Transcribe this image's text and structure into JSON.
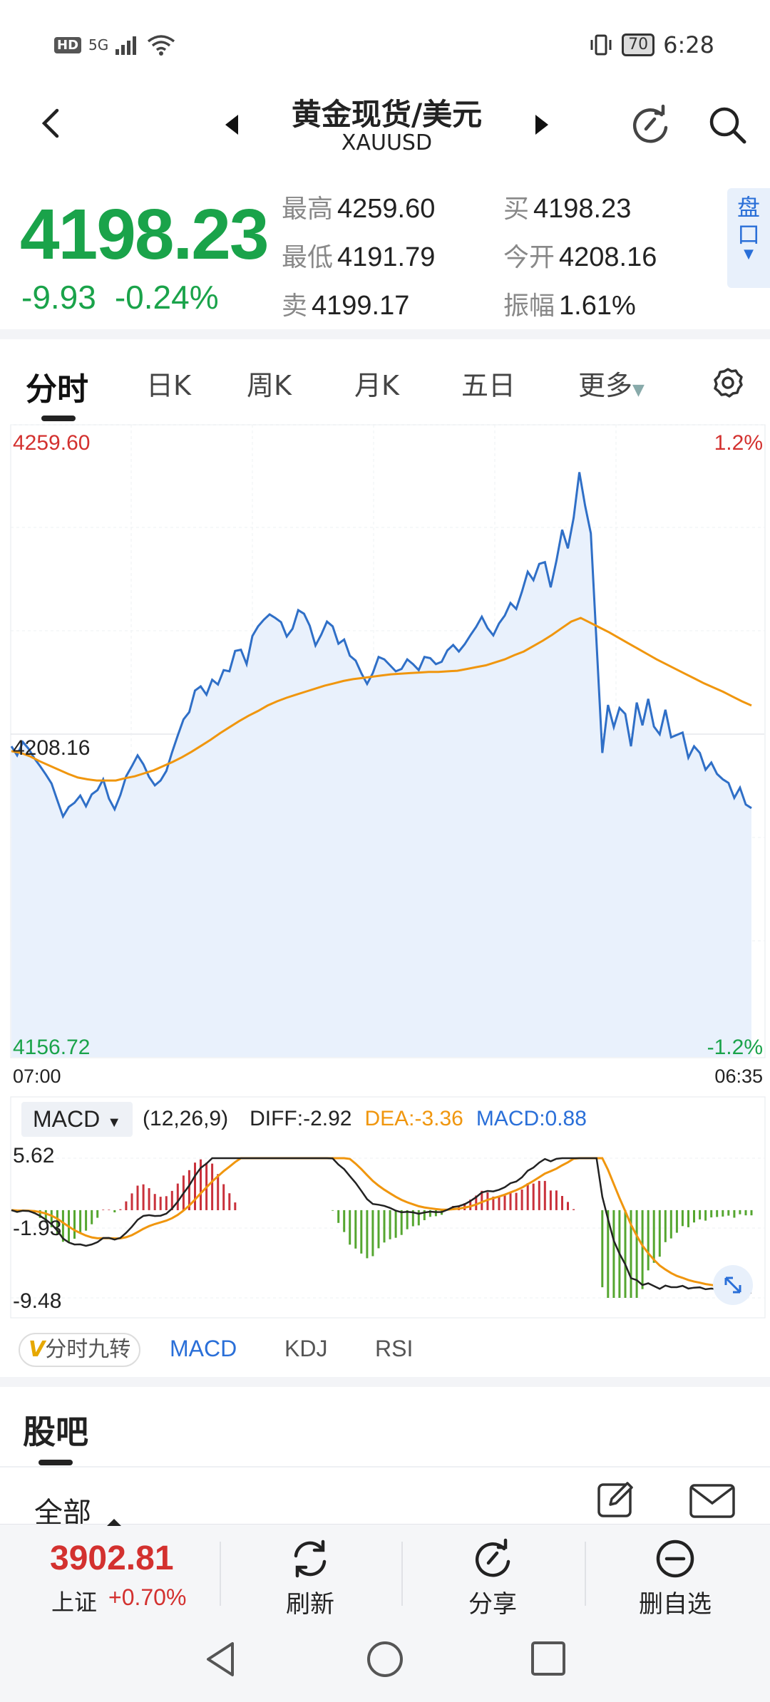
{
  "status_bar": {
    "hd": "HD",
    "network": "5G",
    "battery": "70",
    "time": "6:28"
  },
  "header": {
    "title": "黄金现货/美元",
    "symbol": "XAUUSD"
  },
  "quote": {
    "price": "4198.23",
    "change": "-9.93",
    "change_pct": "-0.24%",
    "high_label": "最高",
    "high": "4259.60",
    "low_label": "最低",
    "low": "4191.79",
    "sell_label": "卖",
    "sell": "4199.17",
    "buy_label": "买",
    "buy": "4198.23",
    "open_label": "今开",
    "open": "4208.16",
    "amp_label": "振幅",
    "amp": "1.61%",
    "pankou": "盘口",
    "color_down": "#1aa34a",
    "color_up": "#d3312f"
  },
  "tabs": {
    "items": [
      "分时",
      "日K",
      "周K",
      "月K",
      "五日",
      "更多"
    ],
    "active": "分时"
  },
  "chart_data": [
    {
      "type": "line",
      "x_start": "07:00",
      "x_end": "06:35",
      "y_max_label": "4259.60",
      "y_mid_label": "4208.16",
      "y_min_label": "4156.72",
      "pct_max_label": "1.2%",
      "pct_min_label": "-1.2%",
      "ylim": [
        4156.72,
        4259.6
      ],
      "series": [
        {
          "name": "price",
          "color": "#2f6fc7",
          "values": [
            4208.5,
            4207.0,
            4209.2,
            4208.1,
            4206.5,
            4205.2,
            4203.8,
            4202.3,
            4199.5,
            4196.8,
            4198.4,
            4199.1,
            4200.3,
            4198.5,
            4200.5,
            4201.2,
            4203.0,
            4199.8,
            4198.0,
            4200.4,
            4203.5,
            4205.2,
            4207.0,
            4205.5,
            4203.4,
            4202.0,
            4202.8,
            4204.4,
            4207.5,
            4210.3,
            4213.0,
            4214.2,
            4217.8,
            4218.5,
            4217.1,
            4219.6,
            4218.8,
            4221.2,
            4221.0,
            4224.4,
            4224.6,
            4222.2,
            4226.9,
            4228.5,
            4229.6,
            4230.5,
            4229.9,
            4229.2,
            4226.8,
            4228.1,
            4231.2,
            4230.6,
            4228.6,
            4225.3,
            4227.1,
            4229.3,
            4228.5,
            4225.6,
            4226.3,
            4223.6,
            4222.8,
            4220.7,
            4218.9,
            4220.7,
            4223.4,
            4223.0,
            4222.0,
            4221.0,
            4221.4,
            4223.0,
            4222.2,
            4221.2,
            4223.4,
            4223.2,
            4222.2,
            4222.6,
            4224.5,
            4225.4,
            4224.3,
            4225.5,
            4227.0,
            4228.4,
            4230.1,
            4228.2,
            4227.0,
            4229.0,
            4230.3,
            4232.4,
            4231.4,
            4234.3,
            4237.6,
            4236.2,
            4238.9,
            4239.2,
            4235.0,
            4239.4,
            4244.6,
            4241.5,
            4246.6,
            4254.2,
            4248.6,
            4244.0,
            4225.8,
            4207.4,
            4215.4,
            4211.7,
            4214.9,
            4213.9,
            4208.5,
            4215.8,
            4212.0,
            4216.4,
            4211.8,
            4210.5,
            4214.6,
            4210.0,
            4210.4,
            4210.8,
            4206.6,
            4208.5,
            4207.4,
            4204.6,
            4205.8,
            4203.9,
            4203.0,
            4202.4,
            4199.9,
            4201.6,
            4198.8,
            4198.2
          ]
        },
        {
          "name": "avg",
          "color": "#f0960e",
          "values": [
            4207.7,
            4207.4,
            4206.8,
            4206.0,
            4205.3,
            4204.6,
            4203.9,
            4203.3,
            4203.0,
            4202.8,
            4202.8,
            4202.8,
            4203.2,
            4203.5,
            4204.0,
            4204.5,
            4205.2,
            4205.9,
            4206.7,
            4207.6,
            4208.6,
            4209.6,
            4210.7,
            4211.7,
            4212.7,
            4213.6,
            4214.4,
            4215.3,
            4216.0,
            4216.6,
            4217.1,
            4217.6,
            4218.1,
            4218.6,
            4219.0,
            4219.4,
            4219.7,
            4219.9,
            4220.1,
            4220.3,
            4220.5,
            4220.6,
            4220.7,
            4220.8,
            4220.9,
            4220.9,
            4221.0,
            4221.1,
            4221.4,
            4221.7,
            4222.0,
            4222.5,
            4223.0,
            4223.7,
            4224.3,
            4225.2,
            4226.1,
            4227.1,
            4228.2,
            4229.3,
            4229.9,
            4229.1,
            4228.3,
            4227.5,
            4226.6,
            4225.7,
            4224.8,
            4223.9,
            4223.0,
            4222.2,
            4221.4,
            4220.6,
            4219.8,
            4219.0,
            4218.3,
            4217.6,
            4216.8,
            4216.0,
            4215.3
          ]
        }
      ]
    },
    {
      "type": "bar",
      "title": "MACD",
      "params": "(12,26,9)",
      "diff_label": "DIFF:-2.92",
      "dea_label": "DEA:-3.36",
      "macd_label": "MACD:0.88",
      "y_labels": [
        "5.62",
        "-1.93",
        "-9.48"
      ],
      "ylim": [
        -9.48,
        5.62
      ],
      "colors": {
        "diff": "#222222",
        "dea": "#f0960e",
        "pos": "#c9313b",
        "neg": "#55a630",
        "label": "#2a6fd8"
      }
    }
  ],
  "indicator_tabs": {
    "jiuzhuan": "分时九转",
    "jiuzhuan_prefix": "V",
    "items": [
      "MACD",
      "KDJ",
      "RSI"
    ],
    "active": "MACD"
  },
  "guba": {
    "title": "股吧",
    "filter": "全部"
  },
  "bottom_bar": {
    "index_value": "3902.81",
    "index_name": "上证",
    "index_change": "+0.70%",
    "refresh_label": "刷新",
    "share_label": "分享",
    "remove_label": "删自选"
  }
}
